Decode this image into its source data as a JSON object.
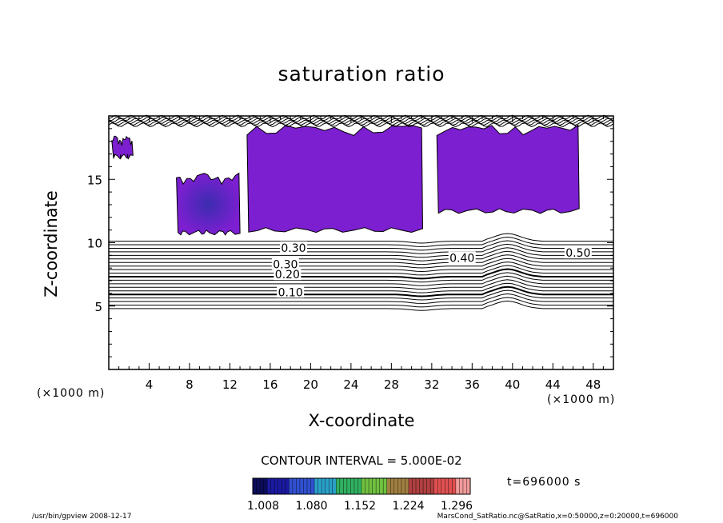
{
  "chart_data": {
    "type": "contour",
    "title": "saturation ratio",
    "xlabel": "X-coordinate",
    "ylabel": "Z-coordinate",
    "x_unit": "(×1000 m)",
    "z_unit": "(×1000 m)",
    "xlim": [
      0,
      50
    ],
    "zlim": [
      0,
      20
    ],
    "x_ticks": [
      "4",
      "8",
      "12",
      "16",
      "20",
      "24",
      "28",
      "32",
      "36",
      "40",
      "44",
      "48"
    ],
    "z_ticks": [
      "5",
      "10",
      "15"
    ],
    "contour_interval": "CONTOUR INTERVAL = 5.000E-02",
    "contour_labels": [
      {
        "text": "0.10",
        "x": 18.0,
        "z": 6.1
      },
      {
        "text": "0.20",
        "x": 17.7,
        "z": 7.5
      },
      {
        "text": "0.30",
        "x": 17.5,
        "z": 8.3
      },
      {
        "text": "0.30",
        "x": 18.3,
        "z": 9.6
      },
      {
        "text": "0.40",
        "x": 35.0,
        "z": 8.8
      },
      {
        "text": "0.50",
        "x": 46.5,
        "z": 9.2
      }
    ],
    "colorbar": {
      "ticks": [
        "1.008",
        "1.080",
        "1.152",
        "1.224",
        "1.296"
      ],
      "colors": [
        "#0c0c5a",
        "#1a1aa0",
        "#3050d0",
        "#2aa0c8",
        "#30b060",
        "#70c040",
        "#a08040",
        "#b04040",
        "#e05050",
        "#f09a9a"
      ]
    },
    "supersaturated_regions": [
      {
        "x_range": [
          6.7,
          12.9
        ],
        "z_range": [
          10.8,
          15.5
        ]
      },
      {
        "x_range": [
          13.7,
          31.0
        ],
        "z_range": [
          11.0,
          19.3
        ]
      },
      {
        "x_range": [
          32.5,
          46.5
        ],
        "z_range": [
          12.5,
          19.3
        ]
      },
      {
        "x_range": [
          0.3,
          2.3
        ],
        "z_range": [
          16.8,
          18.5
        ]
      }
    ],
    "fill_color": "#7b1fd0",
    "fill_core_color": "#3b2cb0",
    "grid": false
  },
  "time_label": "t=696000 s",
  "footer_left": "/usr/bin/gpview   2008-12-17",
  "footer_right": "MarsCond_SatRatio.nc@SatRatio,x=0:50000,z=0:20000,t=696000"
}
